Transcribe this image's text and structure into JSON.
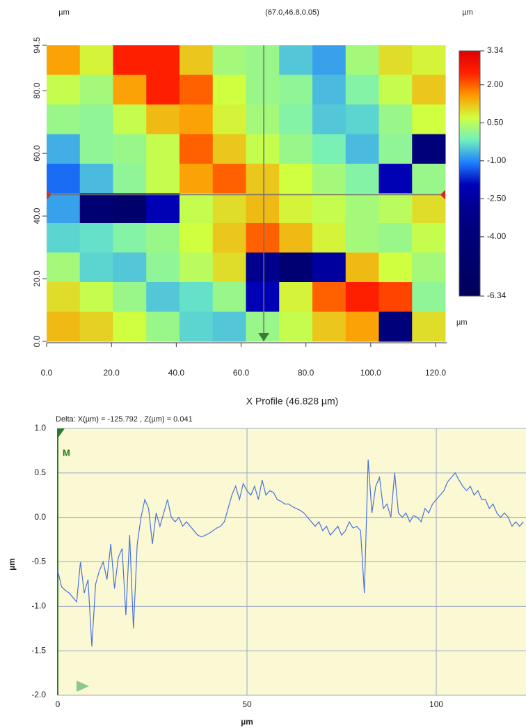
{
  "chart_data": [
    {
      "type": "heatmap",
      "x_unit": "µm",
      "cursor_label": "(67.0,46.8,0.05)",
      "z_unit_top": "µm",
      "z_unit_bottom": "µm",
      "cursor": [
        67.0,
        46.8
      ],
      "xlim": [
        0,
        123
      ],
      "ylim": [
        0,
        94.5
      ],
      "xticks": [
        {
          "value": 0,
          "label": "0.0"
        },
        {
          "value": 20,
          "label": "20.0"
        },
        {
          "value": 40,
          "label": "40.0"
        },
        {
          "value": 60,
          "label": "60.0"
        },
        {
          "value": 80,
          "label": "80.0"
        },
        {
          "value": 100,
          "label": "100.0"
        },
        {
          "value": 120,
          "label": "120.0"
        }
      ],
      "yticks": [
        {
          "value": 0,
          "label": "0.0"
        },
        {
          "value": 20,
          "label": "20.0"
        },
        {
          "value": 40,
          "label": "40.0"
        },
        {
          "value": 60,
          "label": "60.0"
        },
        {
          "value": 80,
          "label": "80.0"
        },
        94.5
      ],
      "zlim": [
        -6.34,
        3.34
      ],
      "zticks": [
        3.34,
        {
          "value": 2,
          "label": "2.00"
        },
        {
          "value": 0.5,
          "label": "0.50"
        },
        {
          "value": -1,
          "label": "-1.00"
        },
        {
          "value": -2.5,
          "label": "-2.50"
        },
        {
          "value": -4,
          "label": "-4.00"
        },
        -6.34
      ],
      "colorscale": [
        "#00005a",
        "#000066",
        "#000072",
        "#00007e",
        "#000090",
        "#0000b8",
        "#2080ff",
        "#70f0c0",
        "#d0ff40",
        "#ff9a00",
        "#ff2000",
        "#e00000"
      ],
      "cursor_color": "#707070",
      "z": [
        [
          1.5,
          0.8,
          2.5,
          2.5,
          1.2,
          0.3,
          0.2,
          -0.5,
          -0.8,
          0.3,
          1.0,
          0.8
        ],
        [
          0.6,
          0.3,
          1.5,
          2.5,
          2.0,
          0.7,
          0.2,
          0.1,
          -0.6,
          0.0,
          0.6,
          1.2
        ],
        [
          0.2,
          0.1,
          0.6,
          1.3,
          1.5,
          0.8,
          0.3,
          0.0,
          -0.5,
          -0.4,
          0.2,
          0.7
        ],
        [
          -0.7,
          0.1,
          0.2,
          0.6,
          2.0,
          1.2,
          0.6,
          0.2,
          -0.1,
          -0.6,
          0.1,
          -4.0
        ],
        [
          -1.2,
          -0.6,
          0.1,
          0.6,
          1.5,
          2.0,
          1.2,
          0.7,
          0.3,
          0.0,
          -2.0,
          0.2
        ],
        [
          -0.8,
          -4.5,
          -5.0,
          -2.0,
          0.6,
          1.0,
          1.3,
          0.8,
          0.6,
          0.3,
          0.5,
          1.0
        ],
        [
          -0.4,
          -0.3,
          0.0,
          0.2,
          0.7,
          1.2,
          2.0,
          1.3,
          0.8,
          0.3,
          0.2,
          0.6
        ],
        [
          0.3,
          -0.4,
          -0.5,
          0.1,
          0.5,
          1.0,
          -3.0,
          -4.5,
          -2.5,
          1.3,
          0.7,
          0.3
        ],
        [
          1.0,
          0.6,
          0.2,
          -0.5,
          -0.3,
          0.2,
          -2.0,
          0.8,
          2.0,
          2.5,
          2.2,
          0.1
        ],
        [
          1.3,
          1.1,
          0.7,
          0.2,
          -0.4,
          -0.5,
          0.2,
          0.6,
          1.2,
          1.5,
          -4.0,
          1.0
        ]
      ]
    },
    {
      "type": "line",
      "title": "X Profile (46.828 µm)",
      "annotation": "Delta:  X(µm) = -125.792 ,  Z(µm) = 0.041",
      "marker_label": "M",
      "xlabel": "µm",
      "ylabel": "µm",
      "xlim": [
        0,
        123.7
      ],
      "ylim": [
        -2,
        1
      ],
      "xticks": [
        0,
        50,
        100
      ],
      "yticks": [
        {
          "value": 1,
          "label": "1.0"
        },
        0.5,
        {
          "value": 0,
          "label": "0.0"
        },
        -0.5,
        {
          "value": -1,
          "label": "-1.0"
        },
        -1.5,
        {
          "value": -2,
          "label": "-2.0"
        }
      ],
      "grid": true,
      "background": "#fbf9d4",
      "grid_color": "#9aa6c4",
      "x": [
        0,
        1,
        2,
        3,
        4,
        5,
        6,
        7,
        8,
        9,
        10,
        11,
        12,
        13,
        14,
        15,
        16,
        17,
        18,
        19,
        20,
        21,
        22,
        23,
        24,
        25,
        26,
        27,
        28,
        29,
        30,
        31,
        32,
        33,
        34,
        35,
        36,
        37,
        38,
        39,
        40,
        41,
        42,
        43,
        44,
        45,
        46,
        47,
        48,
        49,
        50,
        51,
        52,
        53,
        54,
        55,
        56,
        57,
        58,
        59,
        60,
        61,
        62,
        63,
        64,
        65,
        66,
        67,
        68,
        69,
        70,
        71,
        72,
        73,
        74,
        75,
        76,
        77,
        78,
        79,
        80,
        81,
        82,
        83,
        84,
        85,
        86,
        87,
        88,
        89,
        90,
        91,
        92,
        93,
        94,
        95,
        96,
        97,
        98,
        99,
        100,
        101,
        102,
        103,
        104,
        105,
        106,
        107,
        108,
        109,
        110,
        111,
        112,
        113,
        114,
        115,
        116,
        117,
        118,
        119,
        120,
        121,
        122,
        123
      ],
      "series": [
        {
          "color": "#4a72d8",
          "values": [
            -0.6,
            -0.78,
            -0.82,
            -0.85,
            -0.9,
            -0.95,
            -0.5,
            -0.85,
            -0.7,
            -1.45,
            -0.75,
            -0.6,
            -0.5,
            -0.7,
            -0.3,
            -0.8,
            -0.45,
            -0.35,
            -1.1,
            -0.2,
            -1.25,
            -0.3,
            0.0,
            0.2,
            0.1,
            -0.3,
            0.05,
            -0.1,
            0.05,
            0.2,
            0.0,
            -0.05,
            0.0,
            -0.1,
            -0.05,
            -0.1,
            -0.15,
            -0.2,
            -0.22,
            -0.2,
            -0.18,
            -0.15,
            -0.12,
            -0.1,
            -0.05,
            0.1,
            0.25,
            0.35,
            0.2,
            0.38,
            0.3,
            0.25,
            0.35,
            0.2,
            0.42,
            0.25,
            0.3,
            0.28,
            0.2,
            0.18,
            0.15,
            0.15,
            0.12,
            0.1,
            0.08,
            0.05,
            0.0,
            -0.05,
            -0.1,
            -0.05,
            -0.15,
            -0.1,
            -0.2,
            -0.15,
            -0.1,
            -0.2,
            -0.15,
            -0.05,
            -0.12,
            -0.1,
            -0.15,
            -0.85,
            0.65,
            0.05,
            0.35,
            0.45,
            0.1,
            0.15,
            0.0,
            0.5,
            0.05,
            0.0,
            0.05,
            -0.05,
            0.02,
            0.0,
            -0.05,
            0.1,
            0.05,
            0.15,
            0.2,
            0.25,
            0.3,
            0.4,
            0.45,
            0.5,
            0.42,
            0.35,
            0.3,
            0.35,
            0.25,
            0.3,
            0.2,
            0.2,
            0.1,
            0.15,
            0.05,
            0.0,
            0.05,
            0.0,
            -0.1,
            -0.05,
            -0.1,
            -0.05
          ]
        }
      ]
    }
  ]
}
